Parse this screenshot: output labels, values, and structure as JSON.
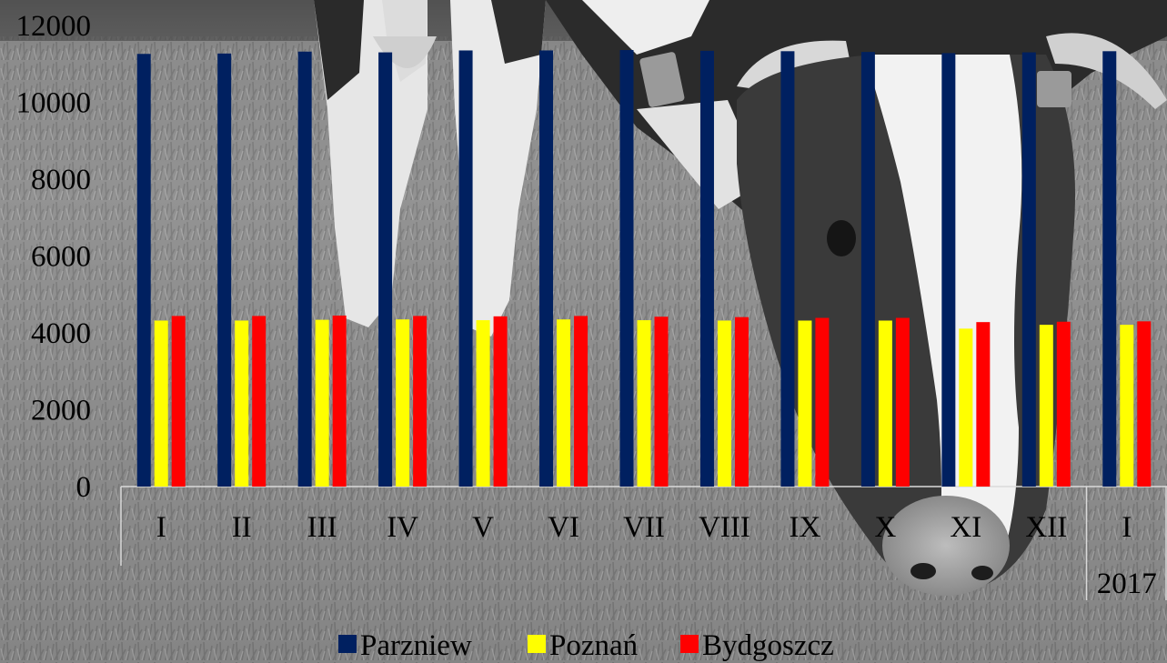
{
  "chart_data": {
    "type": "bar",
    "categories": [
      "I",
      "II",
      "III",
      "IV",
      "V",
      "VI",
      "VII",
      "VIII",
      "IX",
      "X",
      "XI",
      "XII",
      "I"
    ],
    "group_labels": [
      "",
      "",
      "",
      "",
      "",
      "",
      "",
      "",
      "",
      "",
      "",
      "",
      "2017"
    ],
    "series": [
      {
        "name": "Parzniew",
        "color": "#002060",
        "values": [
          11260,
          11270,
          11320,
          11300,
          11350,
          11350,
          11360,
          11340,
          11330,
          11310,
          11280,
          11300,
          11330
        ]
      },
      {
        "name": "Poznań",
        "color": "#ffff00",
        "values": [
          4320,
          4320,
          4340,
          4350,
          4330,
          4350,
          4330,
          4320,
          4320,
          4320,
          4110,
          4210,
          4210
        ]
      },
      {
        "name": "Bydgoszcz",
        "color": "#ff0000",
        "values": [
          4440,
          4440,
          4450,
          4440,
          4430,
          4440,
          4420,
          4410,
          4390,
          4390,
          4280,
          4290,
          4300
        ]
      }
    ],
    "yticks": [
      "0",
      "2000",
      "4000",
      "6000",
      "8000",
      "10000",
      "12000"
    ],
    "ylim": [
      0,
      12000
    ],
    "legend_position": "bottom",
    "grid": false,
    "background": "black-and-white photograph of a grazing cow"
  }
}
